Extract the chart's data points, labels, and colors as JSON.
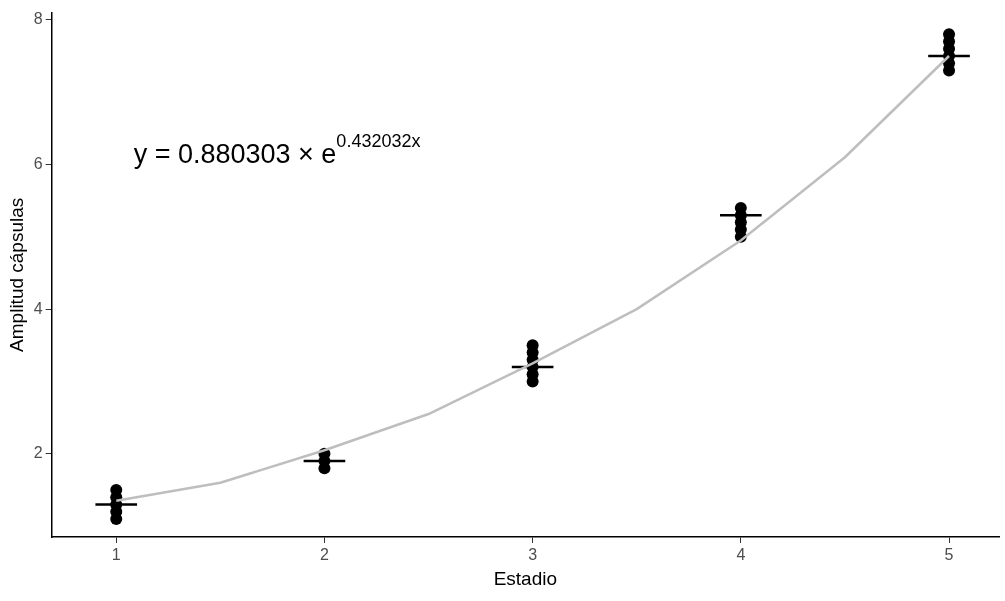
{
  "chart_data": {
    "type": "scatter",
    "xlabel": "Estadio",
    "ylabel": "Amplitud cápsulas",
    "xlim": [
      0.69,
      5.24
    ],
    "xticks": [
      1,
      2,
      3,
      4,
      5
    ],
    "ylim": [
      0.85,
      8.1
    ],
    "yticks": [
      2,
      4,
      6,
      8
    ],
    "grid": false,
    "legend": false,
    "annotations": [
      "y = 0.880303 × e$^{0.432032x}$"
    ],
    "series": [
      {
        "type": "line",
        "color": "#bebebe",
        "x": [
          1,
          1.5,
          2,
          2.5,
          3,
          3.5,
          4,
          4.5,
          5
        ],
        "values": [
          1.35,
          1.6,
          2.05,
          2.55,
          3.25,
          4.0,
          4.95,
          6.1,
          7.5
        ],
        "marker": "none"
      },
      {
        "color": "#000000",
        "marker": "circle",
        "x": [
          1,
          1,
          1,
          1,
          1,
          2,
          2,
          2,
          3,
          3,
          3,
          3,
          3,
          3,
          4,
          4,
          4,
          4,
          4,
          5,
          5,
          5,
          5,
          5,
          5
        ],
        "values": [
          1.1,
          1.2,
          1.3,
          1.4,
          1.5,
          1.8,
          1.9,
          2.0,
          3.0,
          3.1,
          3.2,
          3.3,
          3.4,
          3.5,
          5.0,
          5.1,
          5.2,
          5.3,
          5.4,
          7.3,
          7.4,
          7.5,
          7.6,
          7.7,
          7.8
        ]
      },
      {
        "type": "line",
        "color": "#000000",
        "marker": "none",
        "x": [
          0.9,
          1.1
        ],
        "values": [
          1.3,
          1.3
        ]
      },
      {
        "type": "line",
        "color": "#000000",
        "marker": "none",
        "x": [
          1.9,
          2.1
        ],
        "values": [
          1.9,
          1.9
        ]
      },
      {
        "type": "line",
        "color": "#000000",
        "marker": "none",
        "x": [
          2.9,
          3.1
        ],
        "values": [
          3.2,
          3.2
        ]
      },
      {
        "type": "line",
        "color": "#000000",
        "marker": "none",
        "x": [
          3.9,
          4.1
        ],
        "values": [
          5.3,
          5.3
        ]
      },
      {
        "type": "line",
        "color": "#000000",
        "marker": "none",
        "x": [
          4.9,
          5.1
        ],
        "values": [
          7.5,
          7.5
        ]
      }
    ]
  }
}
